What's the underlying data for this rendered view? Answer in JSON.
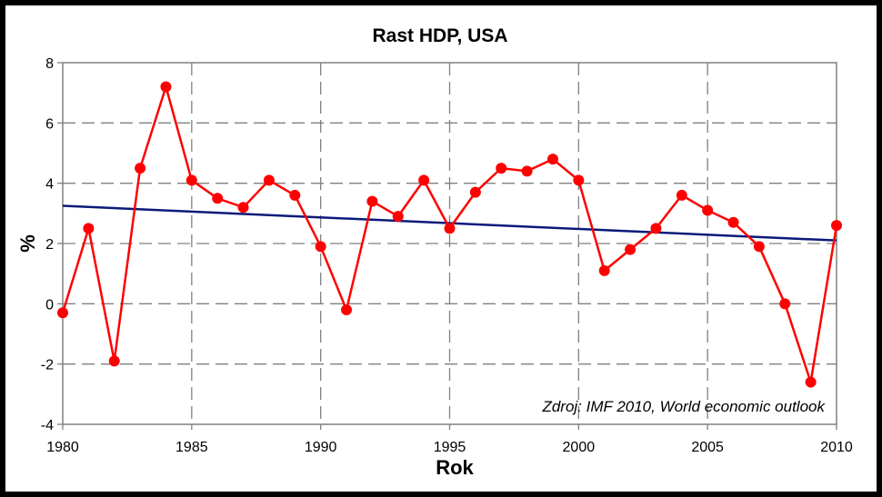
{
  "chart_data": {
    "type": "line",
    "title": "Rast HDP, USA",
    "xlabel": "Rok",
    "ylabel": "%",
    "source_note": "Zdroj: IMF 2010, World economic outlook",
    "xlim": [
      1980,
      2010
    ],
    "ylim": [
      -4,
      8
    ],
    "x_ticks": [
      1980,
      1985,
      1990,
      1995,
      2000,
      2005,
      2010
    ],
    "y_ticks": [
      -4,
      -2,
      0,
      2,
      4,
      6,
      8
    ],
    "grid": true,
    "x": [
      1980,
      1981,
      1982,
      1983,
      1984,
      1985,
      1986,
      1987,
      1988,
      1989,
      1990,
      1991,
      1992,
      1993,
      1994,
      1995,
      1996,
      1997,
      1998,
      1999,
      2000,
      2001,
      2002,
      2003,
      2004,
      2005,
      2006,
      2007,
      2008,
      2009,
      2010
    ],
    "series": [
      {
        "color": "#ff0000",
        "values": [
          -0.3,
          2.5,
          -1.9,
          4.5,
          7.2,
          4.1,
          3.5,
          3.2,
          4.1,
          3.6,
          1.9,
          -0.2,
          3.4,
          2.9,
          4.1,
          2.5,
          3.7,
          4.5,
          4.4,
          4.8,
          4.1,
          1.1,
          1.8,
          2.5,
          3.6,
          3.1,
          2.7,
          1.9,
          0.0,
          -2.6,
          2.6
        ]
      },
      {
        "type": "trendline",
        "color": "#0a1a7a",
        "x": [
          1980,
          2010
        ],
        "values": [
          3.25,
          2.1
        ]
      }
    ]
  }
}
